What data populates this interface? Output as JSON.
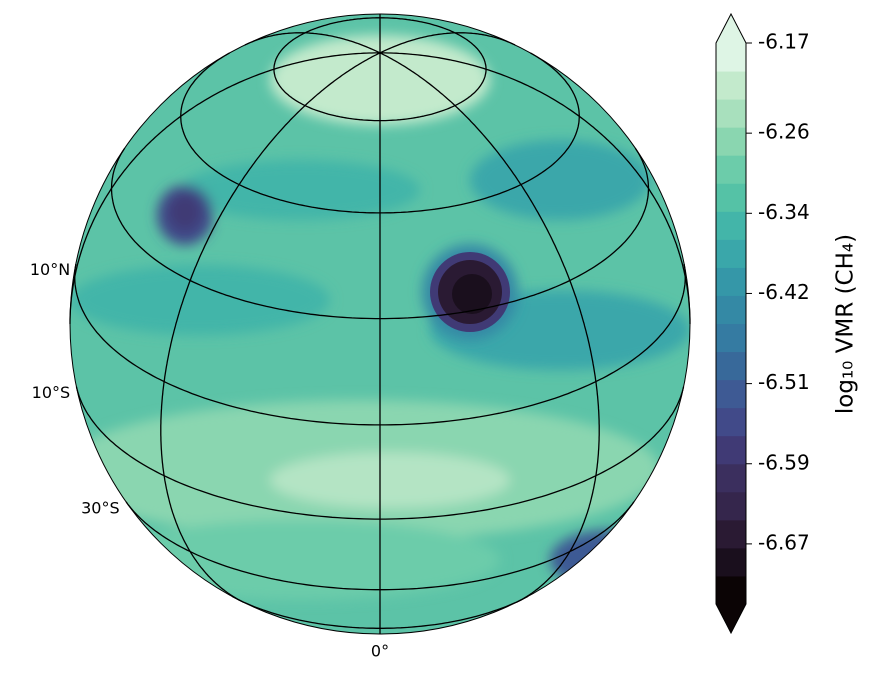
{
  "map": {
    "projection": "orthographic",
    "lat_ticks": [
      {
        "value": 10,
        "label": "10°N"
      },
      {
        "value": -10,
        "label": "10°S"
      },
      {
        "value": -30,
        "label": "30°S"
      }
    ],
    "lon_ticks": [
      {
        "value": 0,
        "label": "0°"
      }
    ],
    "colorbar": {
      "label": "log₁₀ VMR (CH₄)",
      "lim": [
        -6.73,
        -6.17
      ],
      "ticks": [
        -6.17,
        -6.26,
        -6.34,
        -6.42,
        -6.51,
        -6.59,
        -6.67
      ],
      "extend": "both",
      "colors": [
        "#0b0405",
        "#1a0f1d",
        "#2a1a33",
        "#35264c",
        "#3b2f5e",
        "#403a75",
        "#414a89",
        "#3e5a94",
        "#38699a",
        "#357ba2",
        "#3489a5",
        "#3597a8",
        "#3aa7aa",
        "#43b5a9",
        "#55c2a6",
        "#6cccaa",
        "#8ad6b0",
        "#a8e0bd",
        "#c3eacc",
        "#def5e5"
      ]
    }
  }
}
